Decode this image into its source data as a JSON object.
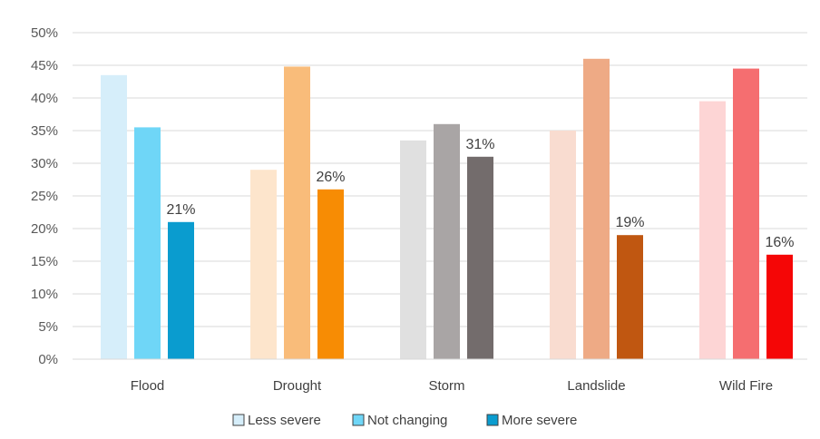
{
  "chart_data": {
    "type": "bar",
    "title": "",
    "xlabel": "",
    "ylabel": "",
    "categories": [
      "Flood",
      "Drought",
      "Storm",
      "Landslide",
      "Wild Fire"
    ],
    "series": [
      {
        "name": "Less severe",
        "values": [
          43.5,
          29,
          33.5,
          35,
          39.5
        ],
        "colors": [
          "#d6eefa",
          "#fde5cc",
          "#e0e0e0",
          "#f9dcd0",
          "#fdd5d5"
        ],
        "legend_color": "#d6eefa"
      },
      {
        "name": "Not changing",
        "values": [
          35.5,
          44.8,
          36,
          46,
          44.5
        ],
        "colors": [
          "#6fd6f7",
          "#f9bc7a",
          "#a9a5a5",
          "#eeaa85",
          "#f56e70"
        ],
        "legend_color": "#6fd6f7"
      },
      {
        "name": "More severe",
        "values": [
          21,
          26,
          31,
          19,
          16
        ],
        "colors": [
          "#0a9ccf",
          "#f78c04",
          "#736c6c",
          "#c05711",
          "#f50606"
        ],
        "legend_color": "#0a9ccf",
        "labels": [
          "21%",
          "26%",
          "31%",
          "19%",
          "16%"
        ]
      }
    ],
    "ylim": [
      0,
      50
    ],
    "yticks": [
      0,
      5,
      10,
      15,
      20,
      25,
      30,
      35,
      40,
      45,
      50
    ],
    "ytick_labels": [
      "0%",
      "5%",
      "10%",
      "15%",
      "20%",
      "25%",
      "30%",
      "35%",
      "40%",
      "45%",
      "50%"
    ],
    "grid": true,
    "grid_color": "#d9d9d9",
    "legend": {
      "placement": "bottom-center",
      "entries": [
        "Less severe",
        "Not changing",
        "More severe"
      ]
    }
  }
}
